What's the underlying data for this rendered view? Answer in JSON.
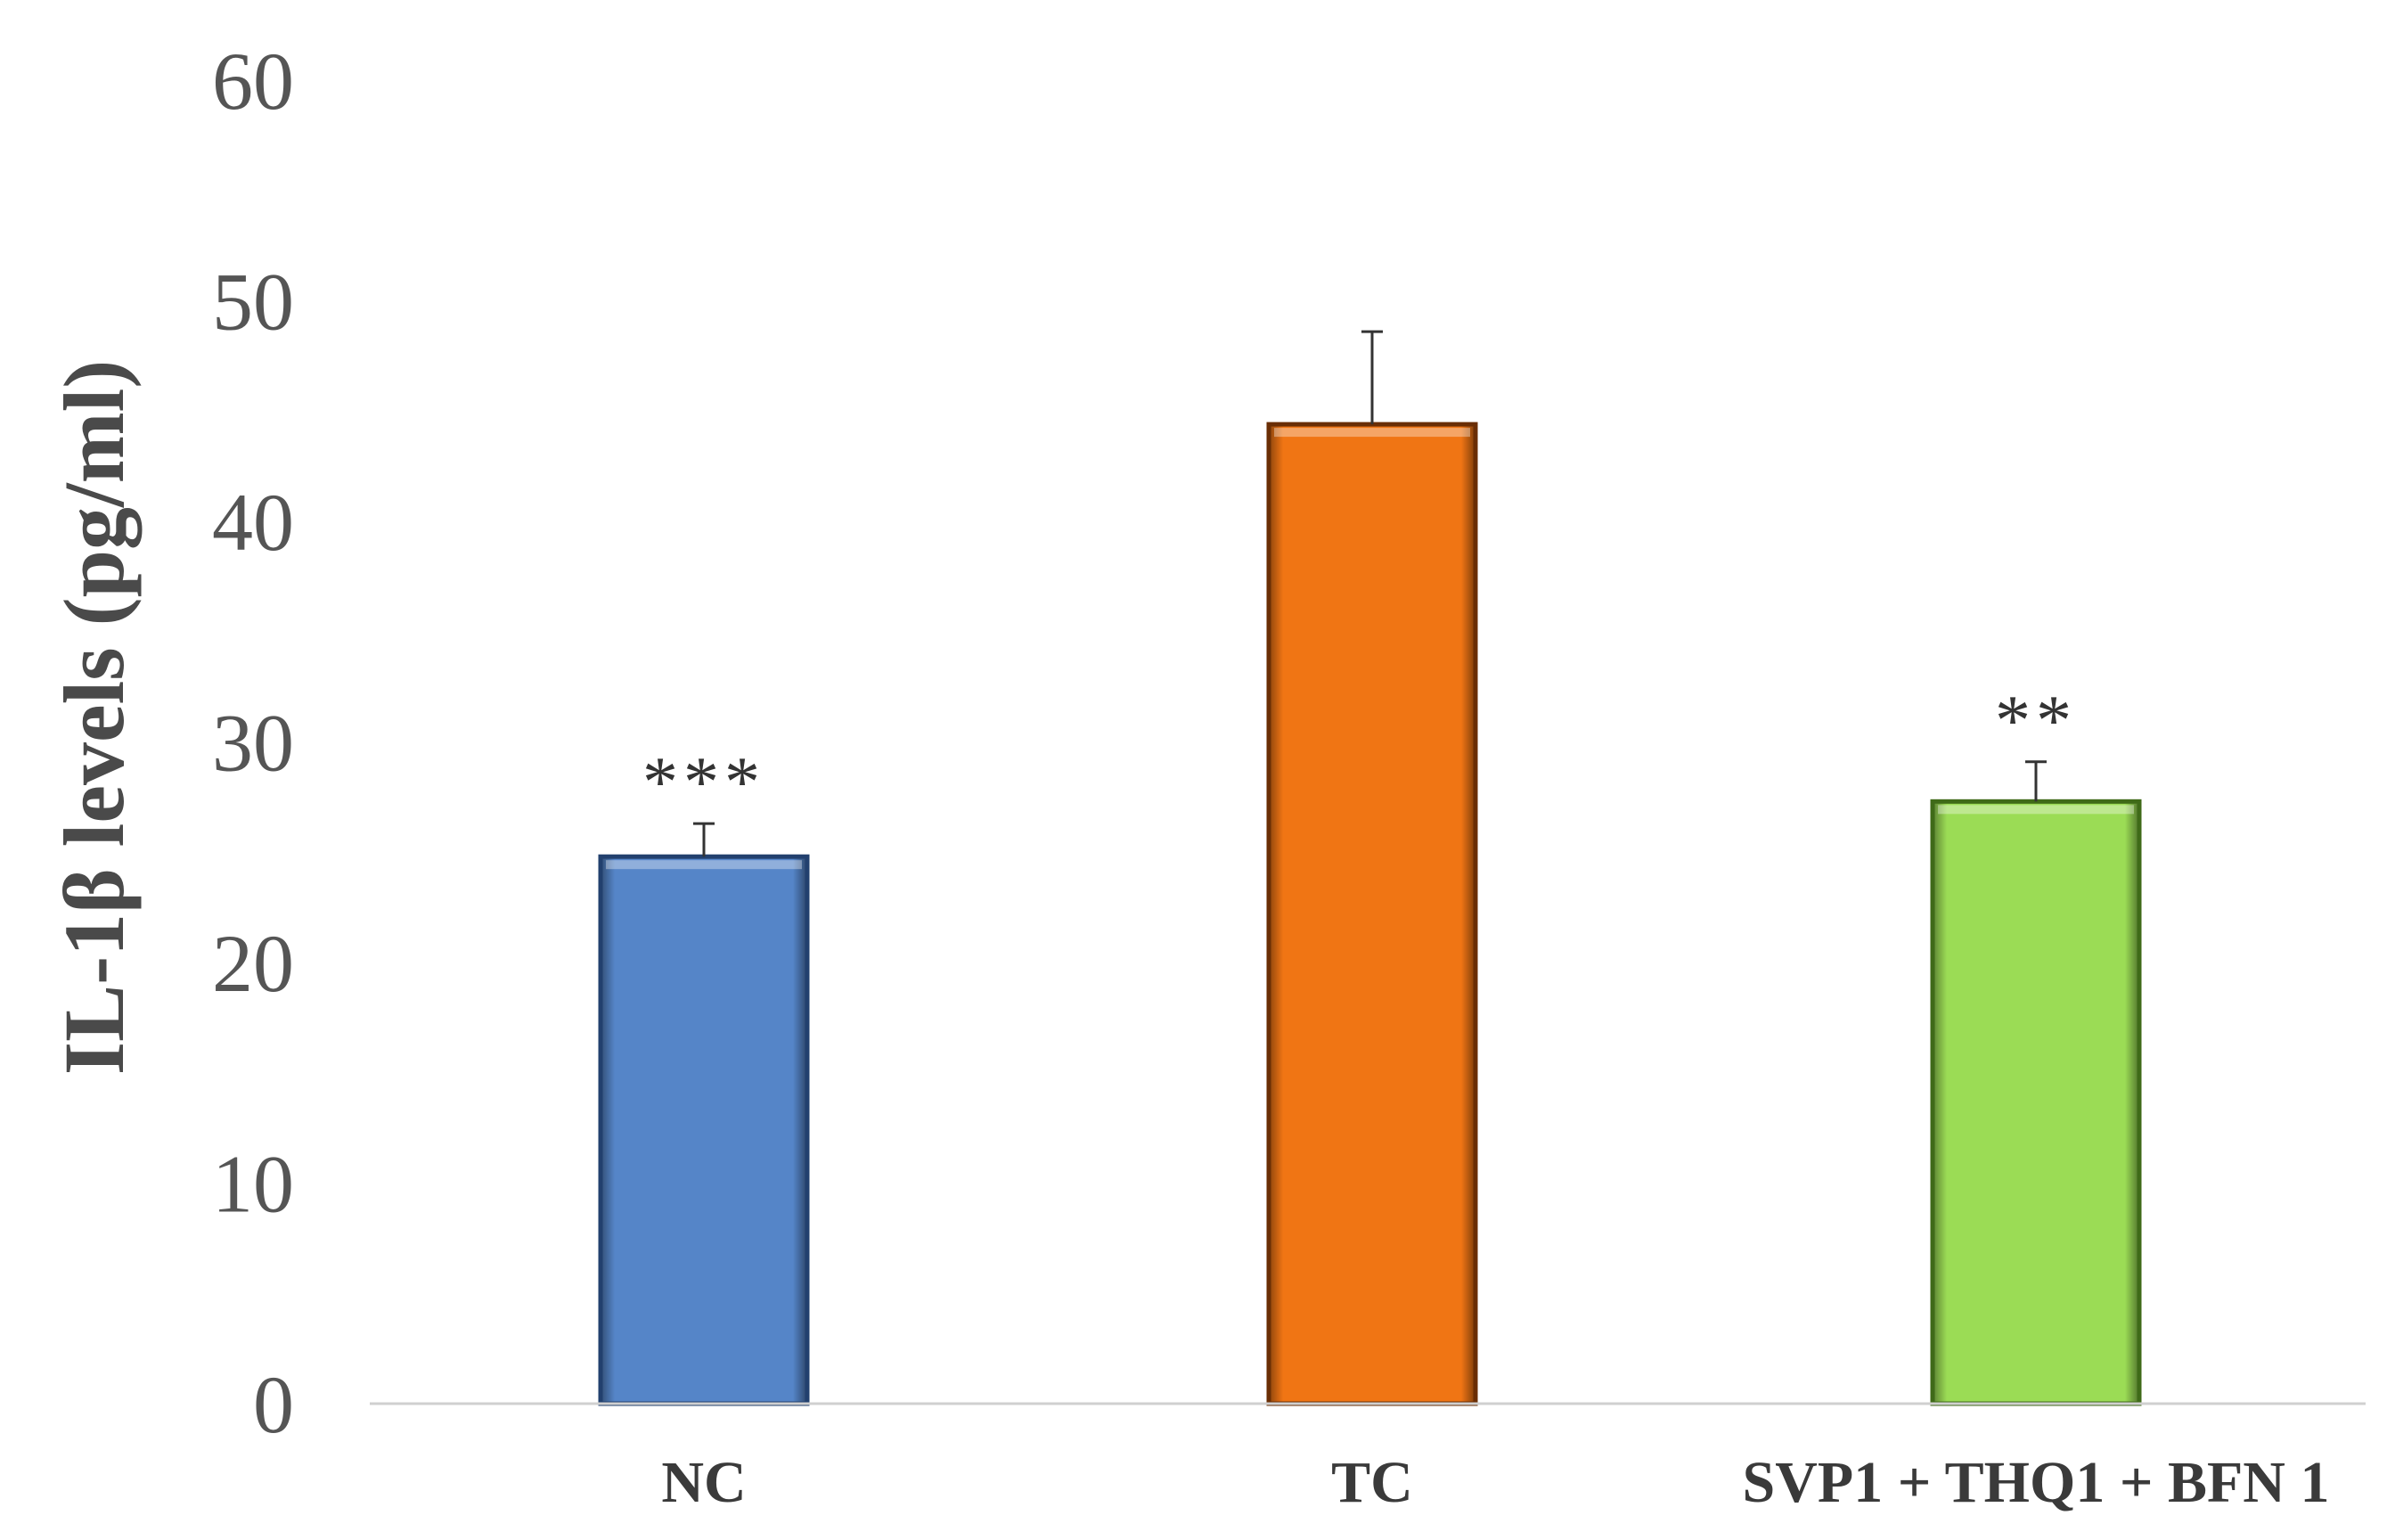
{
  "chart_data": {
    "type": "bar",
    "title": "",
    "xlabel": "",
    "ylabel": "IL-1β levels (pg/ml)",
    "ylim": [
      0,
      60
    ],
    "yticks": [
      0,
      10,
      20,
      30,
      40,
      50,
      60
    ],
    "ytick_labels": [
      "0",
      "10",
      "20",
      "30",
      "40",
      "50",
      "60"
    ],
    "grid": false,
    "legend": "none",
    "categories": [
      "NC",
      "TC",
      "SVP1 + THQ1 + BFN 1"
    ],
    "values": [
      24.8,
      44.4,
      27.3
    ],
    "errors": [
      1.5,
      4.2,
      1.8
    ],
    "significance": [
      "***",
      "",
      "**"
    ],
    "colors": [
      "#5585c8",
      "#f07514",
      "#9bdc55"
    ],
    "edge_colors": [
      "#22406e",
      "#6a2e05",
      "#3f6a18"
    ]
  }
}
